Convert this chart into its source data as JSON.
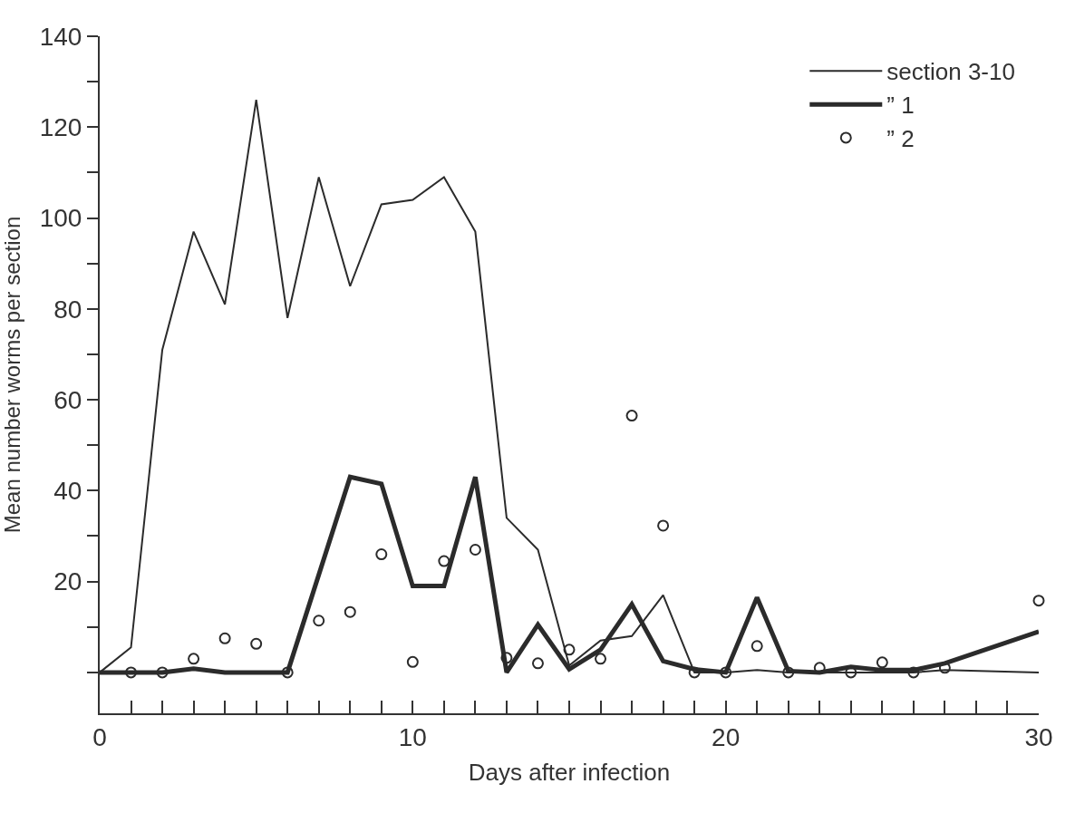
{
  "chart_data": {
    "type": "line",
    "xlabel": "Days after infection",
    "ylabel": "Mean number worms per section",
    "xlim": [
      0,
      30
    ],
    "ylim": [
      -9,
      140
    ],
    "xticks": [
      0,
      {
        "value": 1,
        "label": null
      },
      {
        "value": 2,
        "label": null
      },
      {
        "value": 3,
        "label": null
      },
      {
        "value": 4,
        "label": null
      },
      {
        "value": 5,
        "label": null
      },
      {
        "value": 6,
        "label": null
      },
      {
        "value": 7,
        "label": null
      },
      {
        "value": 8,
        "label": null
      },
      {
        "value": 9,
        "label": null
      },
      10,
      {
        "value": 11,
        "label": null
      },
      {
        "value": 12,
        "label": null
      },
      {
        "value": 13,
        "label": null
      },
      {
        "value": 14,
        "label": null
      },
      {
        "value": 15,
        "label": null
      },
      {
        "value": 16,
        "label": null
      },
      {
        "value": 17,
        "label": null
      },
      {
        "value": 18,
        "label": null
      },
      {
        "value": 19,
        "label": null
      },
      20,
      {
        "value": 21,
        "label": null
      },
      {
        "value": 22,
        "label": null
      },
      {
        "value": 23,
        "label": null
      },
      {
        "value": 24,
        "label": null
      },
      {
        "value": 25,
        "label": null
      },
      {
        "value": 26,
        "label": null
      },
      {
        "value": 27,
        "label": null
      },
      {
        "value": 28,
        "label": null
      },
      {
        "value": 29,
        "label": null
      },
      30
    ],
    "yticks": [
      {
        "value": 0,
        "label": null
      },
      {
        "value": 10,
        "label": null
      },
      20,
      {
        "value": 30,
        "label": null
      },
      40,
      {
        "value": 50,
        "label": null
      },
      60,
      {
        "value": 70,
        "label": null
      },
      80,
      {
        "value": 90,
        "label": null
      },
      100,
      {
        "value": 110,
        "label": null
      },
      120,
      {
        "value": 130,
        "label": null
      },
      140
    ],
    "legend": "top right",
    "series": [
      {
        "name": "section 3-10",
        "color": "#2b2b2b",
        "marker": "none",
        "line_style": "solid",
        "x": [
          0,
          1,
          2,
          3,
          4,
          5,
          6,
          7,
          8,
          9,
          10,
          11,
          12,
          13,
          14,
          15,
          16,
          17,
          18,
          19,
          20,
          21,
          22,
          23,
          24,
          25,
          26,
          27,
          30
        ],
        "values": [
          0,
          5.5,
          71,
          97,
          81,
          126,
          78,
          109,
          85,
          103,
          104,
          109,
          97,
          34,
          27,
          1.5,
          7,
          8,
          17,
          0,
          0,
          0.5,
          0,
          0,
          0,
          0,
          0,
          0.5,
          0
        ]
      },
      {
        "name": "” 1",
        "color": "#2b2b2b",
        "marker": "none",
        "line_style": "solid",
        "x": [
          0,
          1,
          2,
          3,
          4,
          5,
          6,
          8,
          9,
          10,
          11,
          12,
          13,
          14,
          15,
          16,
          17,
          18,
          19,
          20,
          21,
          22,
          23,
          24,
          25,
          26,
          27,
          30
        ],
        "values": [
          0,
          0,
          0,
          0.8,
          0,
          0,
          0,
          43,
          41.5,
          19,
          19,
          43,
          0,
          10.5,
          0.7,
          5,
          15,
          2.5,
          0.7,
          0,
          16.5,
          0.3,
          0,
          1.2,
          0.5,
          0.5,
          2,
          9
        ]
      },
      {
        "name": "” 2",
        "type": "scatter",
        "color": "#2b2b2b",
        "marker": "circle",
        "x": [
          1,
          2,
          3,
          4,
          5,
          6,
          7,
          8,
          9,
          10,
          11,
          12,
          13,
          14,
          15,
          16,
          17,
          18,
          19,
          20,
          21,
          22,
          23,
          24,
          25,
          26,
          27,
          30
        ],
        "values": [
          0,
          0,
          3,
          7.5,
          6.3,
          0,
          11.4,
          13.3,
          26,
          2.3,
          24.5,
          27,
          3.2,
          2,
          5,
          3,
          56.5,
          32.3,
          0,
          0,
          5.8,
          0,
          1,
          0,
          2.2,
          0,
          1,
          15.8
        ]
      }
    ]
  }
}
